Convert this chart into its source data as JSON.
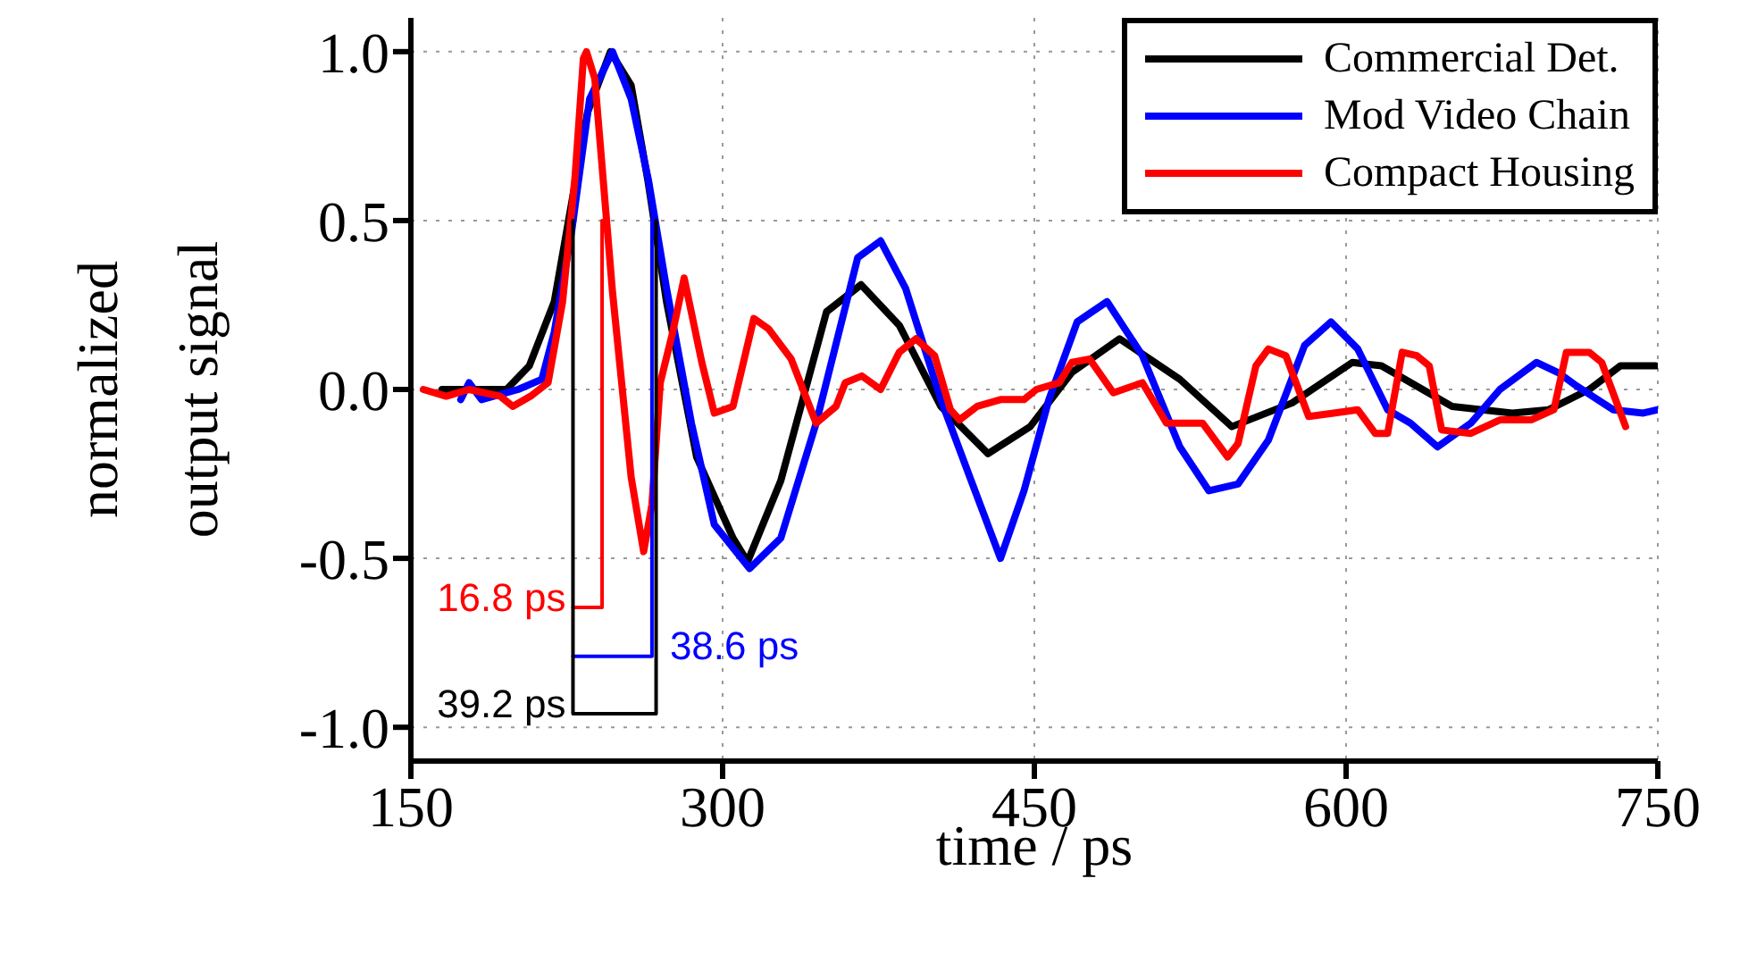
{
  "chart_data": {
    "type": "line",
    "xlabel": "time / ps",
    "ylabel": "normalized output signal",
    "xlim": [
      150,
      750
    ],
    "ylim": [
      -1.1,
      1.1
    ],
    "xticks": [
      150,
      300,
      450,
      600,
      750
    ],
    "yticks": [
      {
        "value": -1,
        "label": "-1.0"
      },
      {
        "value": -0.5,
        "label": "-0.5"
      },
      {
        "value": 0,
        "label": "0.0"
      },
      {
        "value": 0.5,
        "label": "0.5"
      },
      {
        "value": 1,
        "label": "1.0"
      }
    ],
    "grid": true,
    "legend": "top right",
    "line_style": "solid",
    "marker": "none",
    "series": [
      {
        "name": "Commercial Det.",
        "color": "#000000",
        "x": [
          165,
          196,
          207,
          219,
          225,
          235,
          246,
          256,
          264,
          273,
          287.5,
          305,
          312,
          328,
          350,
          366.6,
          385,
          405,
          427.7,
          448,
          468,
          491,
          520,
          545,
          574,
          603,
          617,
          651,
          680,
          697.5,
          717,
          732,
          749
        ],
        "values": [
          0,
          0,
          0.07,
          0.26,
          0.47,
          0.82,
          1,
          0.9,
          0.62,
          0.26,
          -0.2,
          -0.44,
          -0.51,
          -0.27,
          0.23,
          0.31,
          0.19,
          -0.05,
          -0.19,
          -0.11,
          0.05,
          0.15,
          0.03,
          -0.11,
          -0.04,
          0.08,
          0.07,
          -0.05,
          -0.07,
          -0.06,
          0,
          0.07,
          0.07
        ]
      },
      {
        "name": "Mod Video Chain",
        "color": "#0000ff",
        "x": [
          174,
          178,
          184,
          201.6,
          213,
          219,
          227.4,
          236,
          247,
          256,
          264.3,
          273,
          285,
          296,
          313,
          328,
          345,
          356,
          365,
          376,
          388,
          405,
          419,
          433.7,
          445,
          457,
          470.6,
          485,
          502,
          520,
          534,
          548,
          562.6,
          580,
          592.7,
          605.6,
          620,
          631,
          644,
          660,
          674,
          691.6,
          702,
          711,
          728.5,
          743,
          750
        ],
        "values": [
          -0.03,
          0.02,
          -0.03,
          0,
          0.03,
          0.17,
          0.47,
          0.86,
          1,
          0.86,
          0.62,
          0.3,
          -0.1,
          -0.4,
          -0.53,
          -0.44,
          -0.1,
          0.17,
          0.39,
          0.44,
          0.3,
          -0.03,
          -0.26,
          -0.5,
          -0.3,
          -0.03,
          0.2,
          0.26,
          0.1,
          -0.17,
          -0.3,
          -0.28,
          -0.15,
          0.13,
          0.2,
          0.12,
          -0.06,
          -0.1,
          -0.17,
          -0.1,
          0,
          0.08,
          0.05,
          0.01,
          -0.06,
          -0.07,
          -0.06
        ]
      },
      {
        "name": "Compact Housing",
        "color": "#ff0000",
        "x": [
          156,
          167,
          178,
          193,
          199,
          207.6,
          216,
          223,
          229,
          233,
          234.5,
          238.5,
          247,
          256,
          262,
          266,
          270,
          276,
          281.5,
          290,
          296,
          305,
          315,
          322,
          333,
          345,
          354.6,
          359,
          367,
          376,
          385,
          393,
          402,
          409.6,
          414,
          422.5,
          433.7,
          445,
          451,
          462,
          468,
          476.6,
          488,
          502,
          513.6,
          531,
          543,
          548,
          556.6,
          562.6,
          571,
          582,
          594,
          605.6,
          614,
          620,
          627,
          634,
          640,
          646,
          660,
          674,
          689,
          700,
          706,
          717,
          723,
          734.5
        ],
        "values": [
          0,
          -0.02,
          0,
          -0.02,
          -0.05,
          -0.02,
          0.02,
          0.26,
          0.63,
          0.98,
          1,
          0.92,
          0.29,
          -0.26,
          -0.48,
          -0.34,
          0.02,
          0.17,
          0.33,
          0.08,
          -0.07,
          -0.05,
          0.21,
          0.18,
          0.09,
          -0.1,
          -0.05,
          0.02,
          0.04,
          0,
          0.11,
          0.15,
          0.1,
          -0.06,
          -0.09,
          -0.05,
          -0.03,
          -0.03,
          0,
          0.02,
          0.08,
          0.09,
          -0.01,
          0.02,
          -0.1,
          -0.1,
          -0.2,
          -0.16,
          0.07,
          0.12,
          0.1,
          -0.08,
          -0.07,
          -0.06,
          -0.13,
          -0.13,
          0.11,
          0.1,
          0.07,
          -0.12,
          -0.13,
          -0.09,
          -0.09,
          -0.06,
          0.11,
          0.11,
          0.08,
          -0.11
        ]
      },
      {
        "color": "#ff0000",
        "x": [
          228,
          242,
          242
        ],
        "values": [
          -0.645,
          -0.645,
          0.5
        ]
      },
      {
        "color": "#0000ff",
        "x": [
          266,
          266,
          228
        ],
        "values": [
          0.5,
          -0.79,
          -0.79
        ]
      },
      {
        "color": "#000000",
        "x": [
          228,
          228,
          268,
          268
        ],
        "values": [
          0.5,
          -0.96,
          -0.96,
          0.5
        ]
      }
    ],
    "annotations": [
      "16.8 ps",
      "38.6 ps",
      "39.2 ps"
    ]
  }
}
